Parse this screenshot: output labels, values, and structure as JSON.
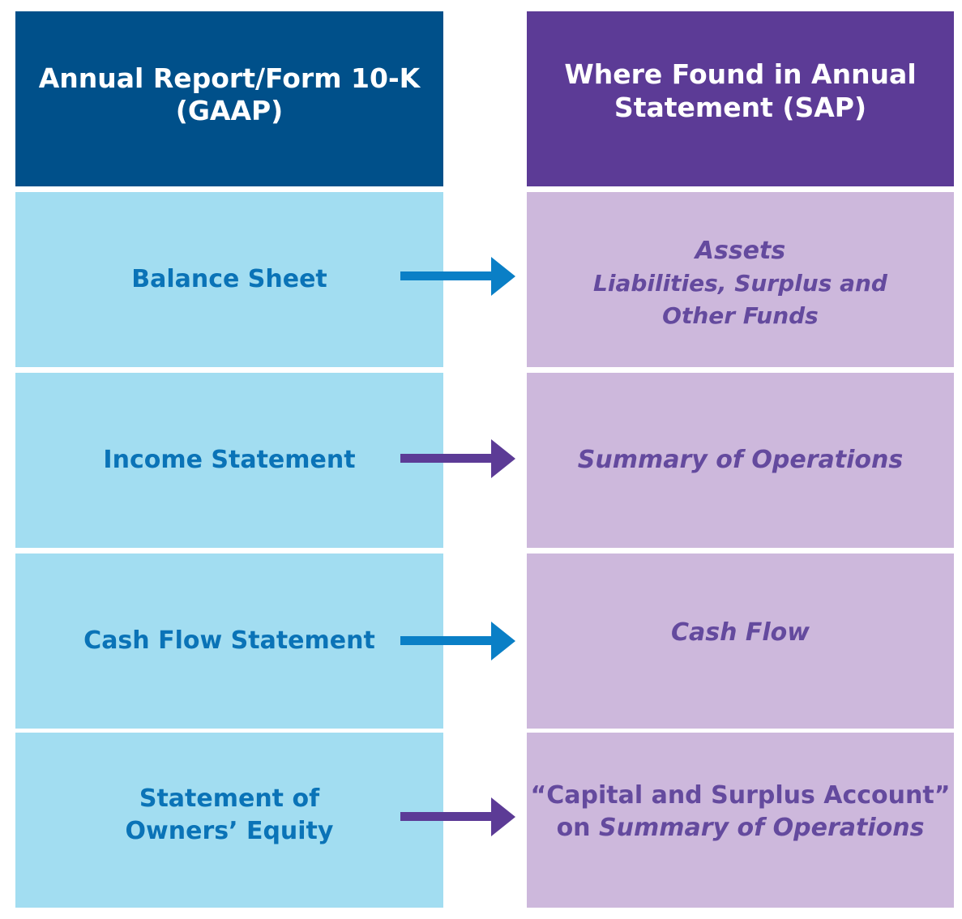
{
  "header": {
    "left_line1": "Annual Report/Form 10-K",
    "left_line2": "(GAAP)",
    "right_line1": "Where Found in Annual",
    "right_line2": "Statement (SAP)"
  },
  "rows": [
    {
      "left_lines": [
        "Balance Sheet"
      ],
      "right_line1": "Assets",
      "right_line2": "Liabilities, Surplus and",
      "right_line3": "Other Funds",
      "arrow_color": "#0a7fc6"
    },
    {
      "left_lines": [
        "Income Statement"
      ],
      "right_line1": "Summary of Operations",
      "arrow_color": "#5c3b96"
    },
    {
      "left_lines": [
        "Cash Flow Statement"
      ],
      "right_line1": "Cash Flow",
      "arrow_color": "#0a7fc6"
    },
    {
      "left_line1": "Statement of",
      "left_line2": "Owners’ Equity",
      "right_line1": "“Capital and Surplus Account”",
      "right_line2_prefix": "on ",
      "right_line2_italic": "Summary of Operations",
      "arrow_color": "#5c3b96"
    }
  ],
  "colors": {
    "header_left_bg": "#00508a",
    "header_right_bg": "#5c3b96",
    "left_cell_bg": "#a2ddf1",
    "right_cell_bg": "#cdb8dc",
    "left_text": "#0a73b7",
    "right_text": "#644a9e"
  }
}
